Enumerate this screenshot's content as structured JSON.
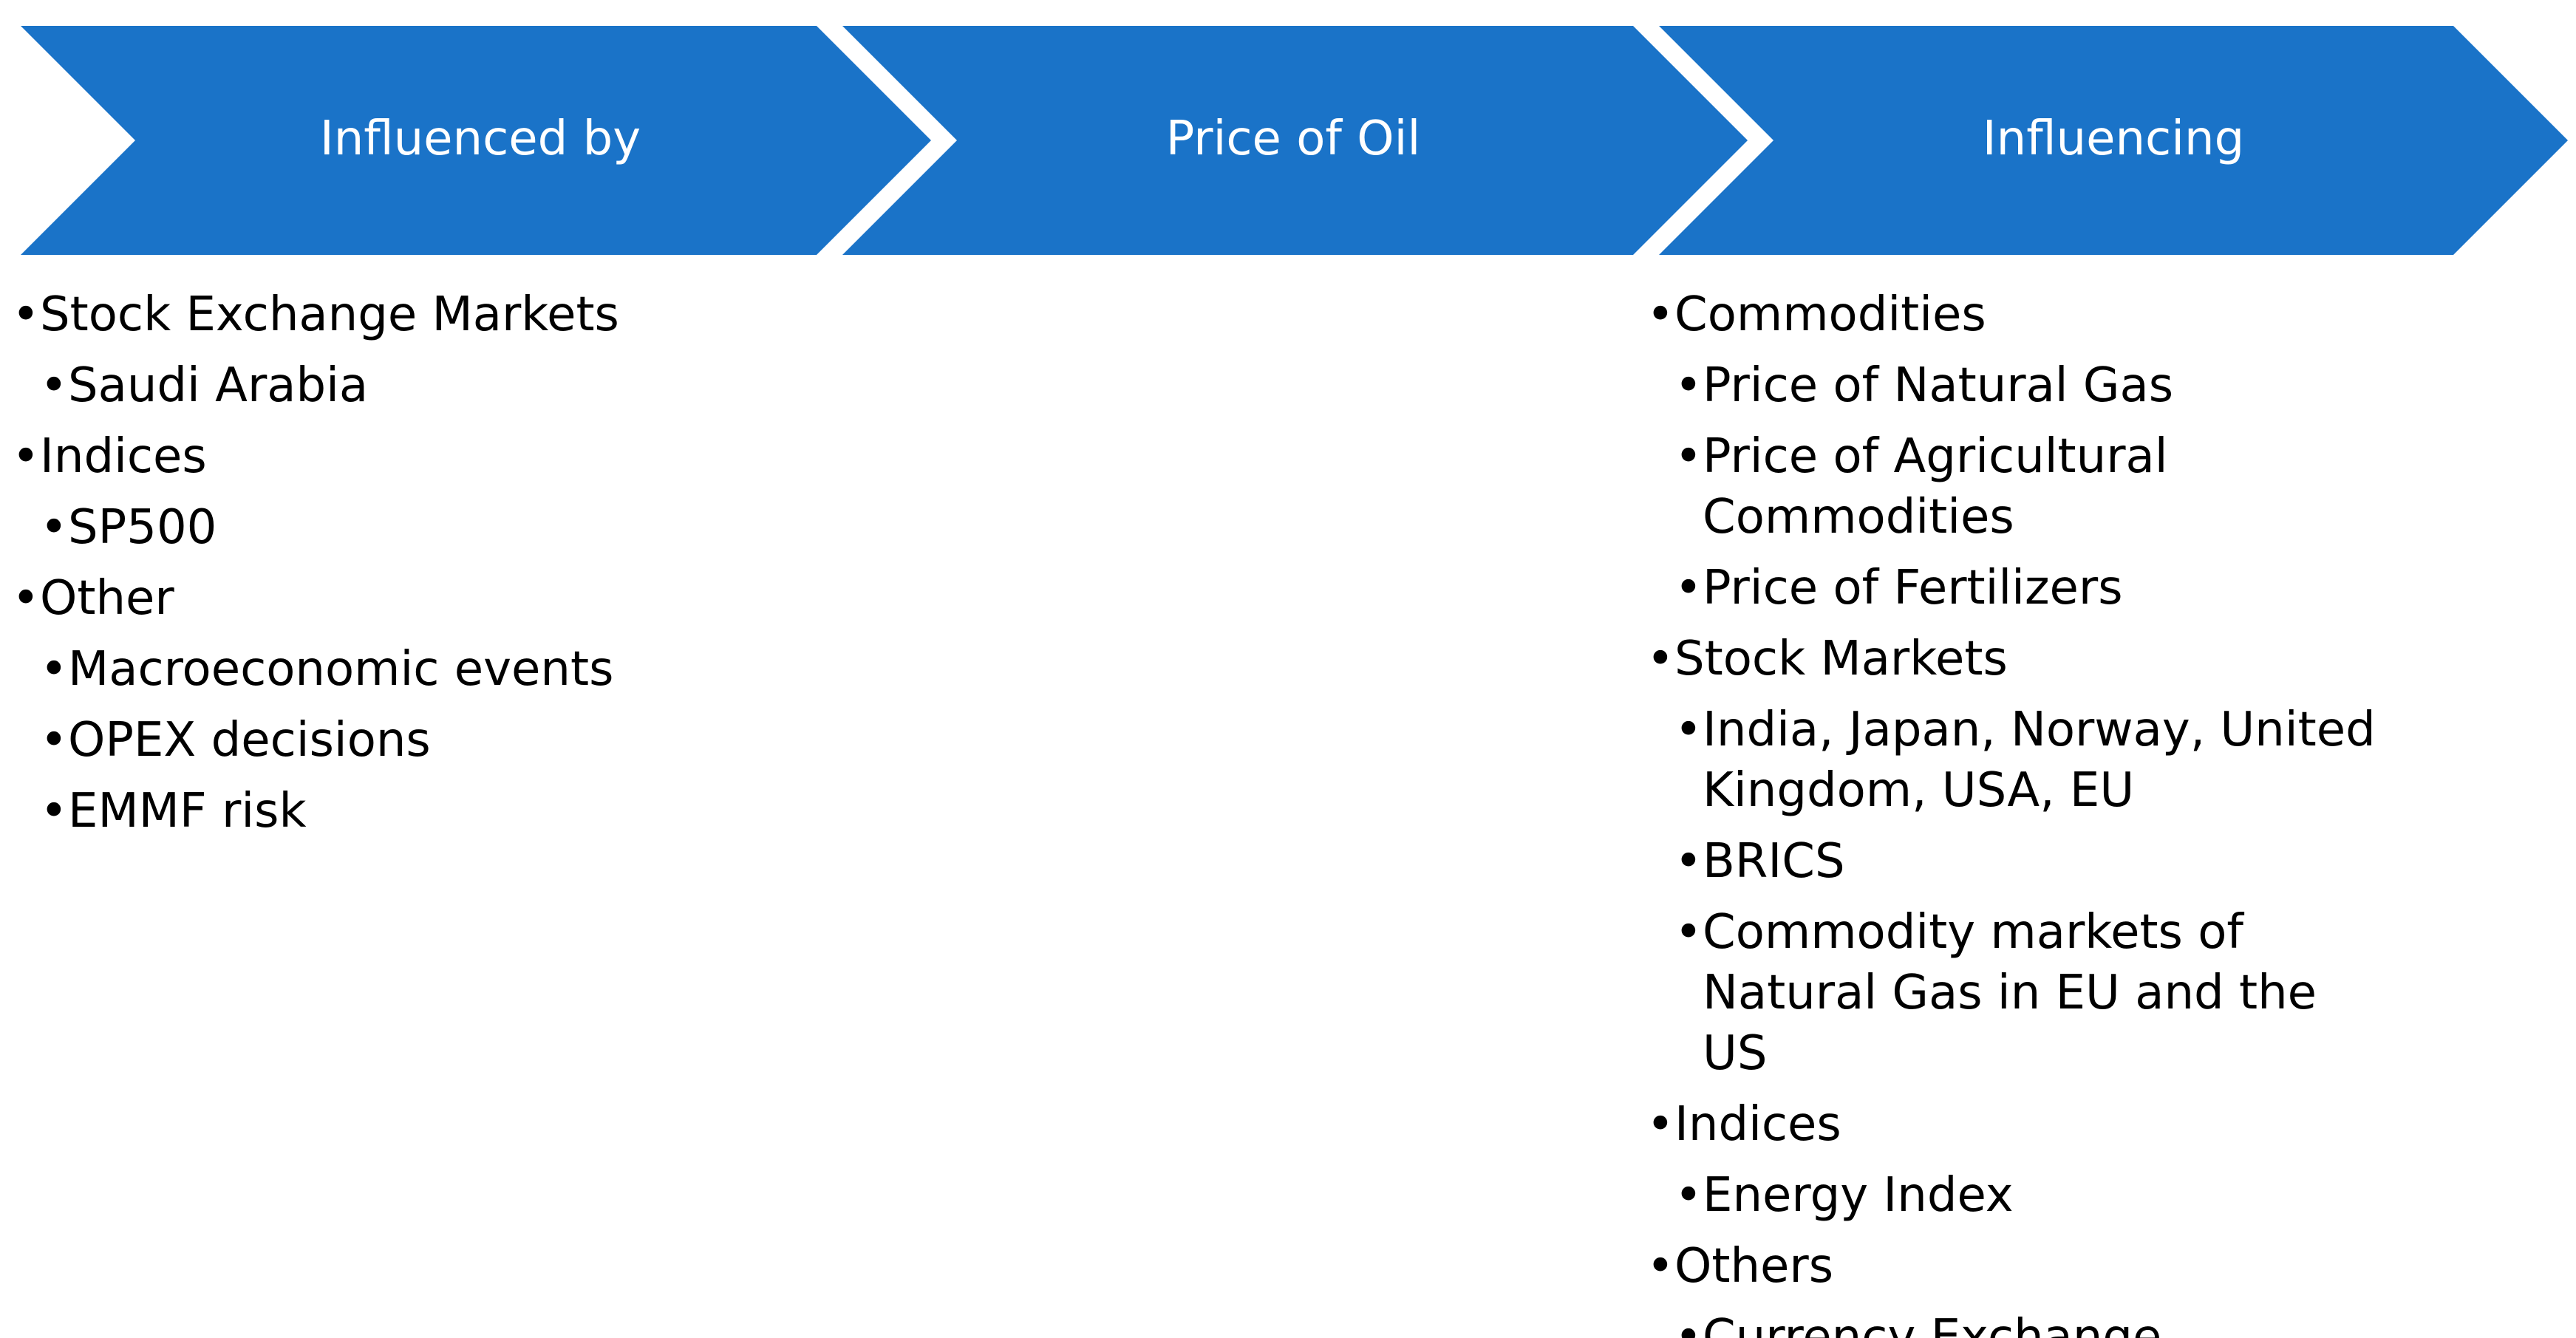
{
  "colors": {
    "chevron_fill": "#1a73c8",
    "chevron_text": "#ffffff",
    "body_text": "#000000"
  },
  "chevrons": [
    {
      "label": "Influenced by"
    },
    {
      "label": "Price of Oil"
    },
    {
      "label": "Influencing"
    }
  ],
  "bullet_glyph": "•",
  "influenced_by": [
    {
      "label": "Stock Exchange Markets",
      "children": [
        "Saudi Arabia"
      ]
    },
    {
      "label": "Indices",
      "children": [
        "SP500"
      ]
    },
    {
      "label": "Other",
      "children": [
        "Macroeconomic events",
        "OPEX decisions",
        "EMMF risk"
      ]
    }
  ],
  "influencing": [
    {
      "label": "Commodities",
      "children": [
        "Price of Natural Gas",
        "Price of Agricultural Commodities",
        "Price of Fertilizers"
      ]
    },
    {
      "label": "Stock Markets",
      "children": [
        "India, Japan, Norway, United Kingdom, USA, EU",
        "BRICS",
        "Commodity markets of Natural Gas in EU and the US"
      ]
    },
    {
      "label": "Indices",
      "children": [
        "Energy Index"
      ]
    },
    {
      "label": "Others",
      "children": [
        "Currency Exchange"
      ]
    }
  ]
}
